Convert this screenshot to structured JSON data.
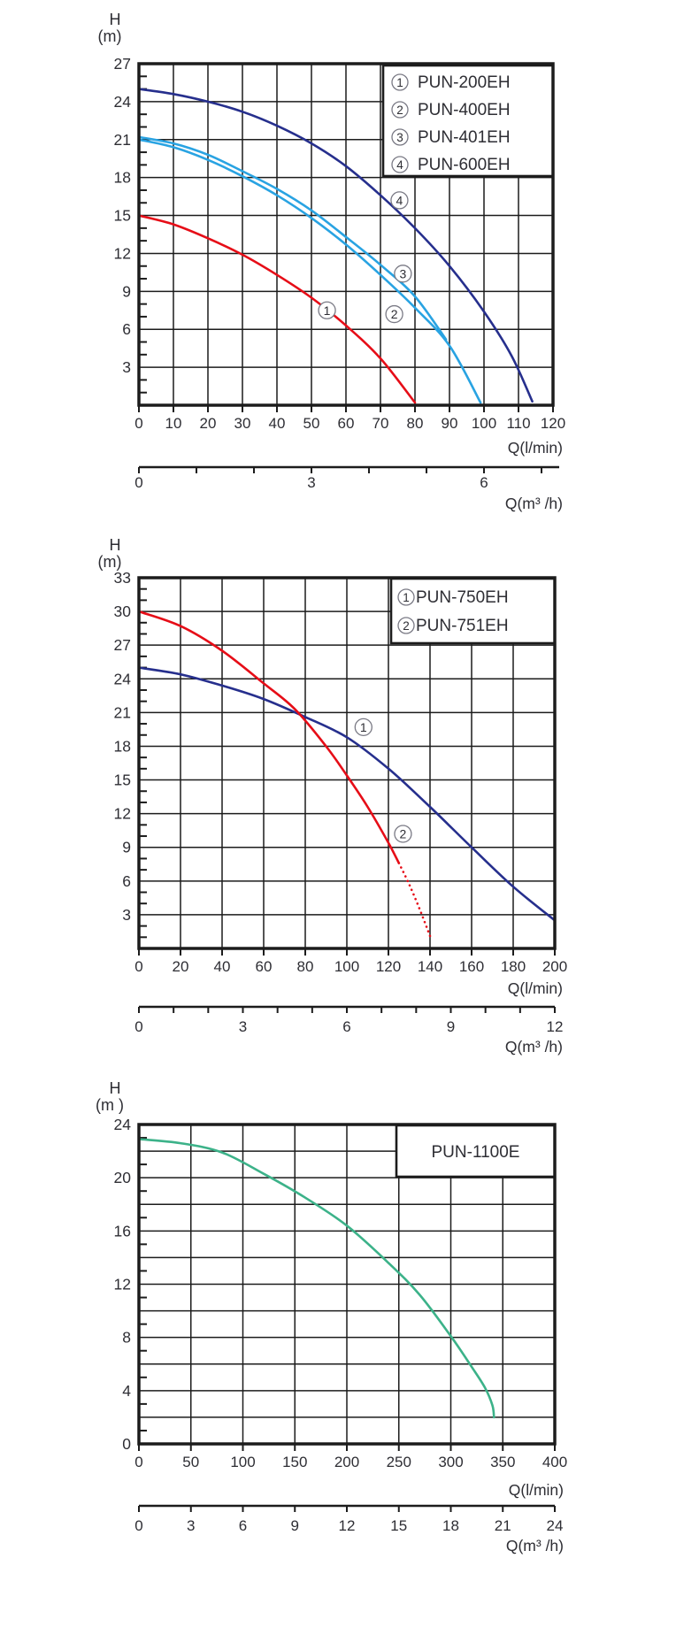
{
  "page": {
    "background": "#ffffff"
  },
  "chart_data": [
    {
      "id": "pump-chart-1",
      "type": "line",
      "ylabel": "H",
      "ylabel2": "(m)",
      "xlabel": "Q(l/min)",
      "x2label": "Q(m³ /h)",
      "x": {
        "min": 0,
        "max": 120,
        "grid_step": 10,
        "tick_labels": [
          0,
          10,
          20,
          30,
          40,
          50,
          60,
          70,
          80,
          90,
          100,
          110,
          120
        ]
      },
      "y": {
        "min": 0,
        "max": 27,
        "grid_step": 3,
        "minor_step": 1,
        "tick_labels": [
          3,
          6,
          9,
          12,
          15,
          18,
          21,
          24,
          27
        ]
      },
      "x2": {
        "lmin_per_unit": 16.6667,
        "tick_step": 1,
        "tick_max": 7,
        "tick_labels": [
          0,
          3,
          6
        ]
      },
      "legend": [
        {
          "num": "1",
          "label": "PUN-200EH"
        },
        {
          "num": "2",
          "label": "PUN-400EH"
        },
        {
          "num": "3",
          "label": "PUN-401EH"
        },
        {
          "num": "4",
          "label": "PUN-600EH"
        }
      ],
      "curves": [
        {
          "name": "PUN-200EH",
          "num": "1",
          "color": "#e60d17",
          "points": [
            [
              0,
              15
            ],
            [
              10,
              14.3
            ],
            [
              20,
              13.2
            ],
            [
              30,
              11.9
            ],
            [
              40,
              10.3
            ],
            [
              50,
              8.5
            ],
            [
              60,
              6.3
            ],
            [
              70,
              3.7
            ],
            [
              80,
              0.2
            ]
          ],
          "marker_pos": [
            54.5,
            7.5
          ]
        },
        {
          "name": "PUN-400EH",
          "num": "2",
          "color": "#29a3e2",
          "points": [
            [
              0,
              21
            ],
            [
              10,
              20.4
            ],
            [
              20,
              19.4
            ],
            [
              30,
              18.1
            ],
            [
              40,
              16.6
            ],
            [
              50,
              14.8
            ],
            [
              60,
              12.7
            ],
            [
              70,
              10.3
            ],
            [
              80,
              7.7
            ],
            [
              90,
              4.7
            ],
            [
              99,
              0.2
            ]
          ],
          "marker_pos": [
            74,
            7.2
          ]
        },
        {
          "name": "PUN-401EH",
          "num": "3",
          "color": "#29a3e2",
          "points": [
            [
              0,
              21.2
            ],
            [
              10,
              20.7
            ],
            [
              20,
              19.8
            ],
            [
              30,
              18.5
            ],
            [
              40,
              17.1
            ],
            [
              50,
              15.4
            ],
            [
              60,
              13.3
            ],
            [
              70,
              11.1
            ],
            [
              80,
              8.6
            ],
            [
              89,
              5.2
            ]
          ],
          "marker_pos": [
            76.5,
            10.4
          ]
        },
        {
          "name": "PUN-600EH",
          "num": "4",
          "color": "#262f8d",
          "points": [
            [
              0,
              25
            ],
            [
              10,
              24.6
            ],
            [
              20,
              24
            ],
            [
              30,
              23.2
            ],
            [
              40,
              22.1
            ],
            [
              50,
              20.7
            ],
            [
              60,
              18.9
            ],
            [
              70,
              16.6
            ],
            [
              80,
              14
            ],
            [
              90,
              11
            ],
            [
              100,
              7.4
            ],
            [
              108,
              3.9
            ],
            [
              114,
              0.3
            ]
          ],
          "marker_pos": [
            75.5,
            16.2
          ]
        }
      ]
    },
    {
      "id": "pump-chart-2",
      "type": "line",
      "ylabel": "H",
      "ylabel2": "(m)",
      "xlabel": "Q(l/min)",
      "x2label": "Q(m³ /h)",
      "x": {
        "min": 0,
        "max": 200,
        "grid_step": 20,
        "tick_labels": [
          0,
          20,
          40,
          60,
          80,
          100,
          120,
          140,
          160,
          180,
          200
        ]
      },
      "y": {
        "min": 0,
        "max": 33,
        "grid_step": 3,
        "minor_step": 1,
        "tick_labels": [
          3,
          6,
          9,
          12,
          15,
          18,
          21,
          24,
          27,
          30,
          33
        ]
      },
      "x2": {
        "lmin_per_unit": 16.6667,
        "tick_step": 1,
        "tick_max": 12,
        "tick_labels": [
          0,
          3,
          6,
          9,
          12
        ]
      },
      "legend": [
        {
          "num": "1",
          "label": "PUN-750EH"
        },
        {
          "num": "2",
          "label": "PUN-751EH"
        }
      ],
      "curves": [
        {
          "name": "PUN-750EH",
          "num": "1",
          "color": "#262f8d",
          "points": [
            [
              0,
              25
            ],
            [
              20,
              24.4
            ],
            [
              40,
              23.4
            ],
            [
              60,
              22.2
            ],
            [
              80,
              20.6
            ],
            [
              100,
              18.8
            ],
            [
              120,
              16
            ],
            [
              140,
              12.6
            ],
            [
              160,
              9
            ],
            [
              180,
              5.5
            ],
            [
              200,
              2.5
            ]
          ],
          "marker_pos": [
            108,
            19.7
          ]
        },
        {
          "name": "PUN-751EH",
          "num": "2",
          "color": "#e60d17",
          "points": [
            [
              0,
              30
            ],
            [
              20,
              28.7
            ],
            [
              40,
              26.5
            ],
            [
              60,
              23.6
            ],
            [
              75,
              21.3
            ],
            [
              90,
              18
            ],
            [
              100,
              15.4
            ],
            [
              110,
              12.6
            ],
            [
              120,
              9.4
            ],
            [
              125,
              7.6
            ]
          ],
          "points_dotted": [
            [
              125,
              7.6
            ],
            [
              130,
              5.7
            ],
            [
              135,
              3.5
            ],
            [
              140,
              1.1
            ]
          ],
          "marker_pos": [
            127,
            10.2
          ]
        }
      ]
    },
    {
      "id": "pump-chart-3",
      "type": "line",
      "ylabel": "H",
      "ylabel2": "(m )",
      "xlabel": "Q(l/min)",
      "x2label": "Q(m³ /h)",
      "x": {
        "min": 0,
        "max": 400,
        "grid_step": 50,
        "tick_labels": [
          0,
          50,
          100,
          150,
          200,
          250,
          300,
          350,
          400
        ]
      },
      "y": {
        "min": 0,
        "max": 24,
        "grid_step": 2,
        "minor_step": 1,
        "tick_labels": [
          0,
          4,
          8,
          12,
          16,
          20,
          24
        ]
      },
      "x2": {
        "lmin_per_unit": 16.6667,
        "tick_step": 3,
        "tick_max": 24,
        "tick_labels": [
          0,
          3,
          6,
          9,
          12,
          15,
          18,
          21,
          24
        ]
      },
      "legend": [
        {
          "label": "PUN-1100E"
        }
      ],
      "curves": [
        {
          "name": "PUN-1100E",
          "num": "",
          "color": "#3cb289",
          "points": [
            [
              0,
              22.9
            ],
            [
              40,
              22.6
            ],
            [
              80,
              21.9
            ],
            [
              120,
              20.3
            ],
            [
              160,
              18.5
            ],
            [
              200,
              16.4
            ],
            [
              240,
              13.6
            ],
            [
              270,
              11.2
            ],
            [
              300,
              8.1
            ],
            [
              320,
              5.8
            ],
            [
              333,
              4.2
            ],
            [
              340,
              2.9
            ],
            [
              341.5,
              2.0
            ]
          ],
          "marker_pos": null
        }
      ]
    }
  ],
  "colors": {
    "grid": "#1c1c1c",
    "border": "#1c1c1c",
    "text": "#2e2e34",
    "marker_ring": "#7a7a85",
    "marker_digit": "#333333",
    "red": "#e60d17",
    "light_blue": "#29a3e2",
    "navy": "#262f8d",
    "green": "#3cb289"
  }
}
